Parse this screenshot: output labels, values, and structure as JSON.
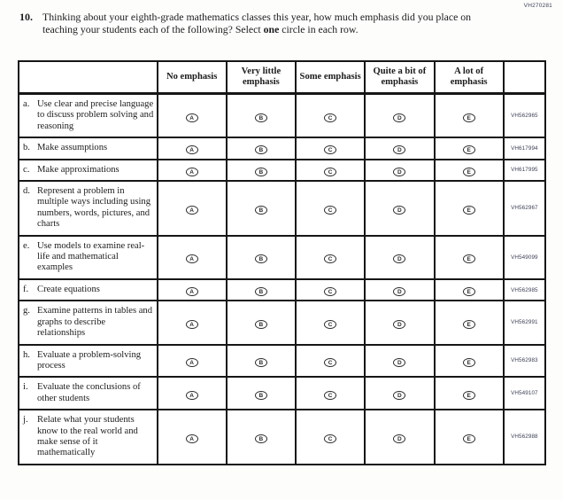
{
  "page_code": "VH270281",
  "question": {
    "number": "10.",
    "text_before_bold": "Thinking about your eighth-grade mathematics classes this year, how much emphasis did you place on teaching your students each of the following? Select ",
    "bold_word": "one",
    "text_after_bold": " circle in each row."
  },
  "table": {
    "columns": [
      "No emphasis",
      "Very little emphasis",
      "Some emphasis",
      "Quite a bit of emphasis",
      "A lot of emphasis"
    ],
    "option_letters": [
      "A",
      "B",
      "C",
      "D",
      "E"
    ],
    "rows": [
      {
        "letter": "a.",
        "text": "Use clear and precise language to discuss problem solving and reasoning",
        "code": "VH562965"
      },
      {
        "letter": "b.",
        "text": "Make assumptions",
        "code": "VH617994"
      },
      {
        "letter": "c.",
        "text": "Make approximations",
        "code": "VH617995"
      },
      {
        "letter": "d.",
        "text": "Represent a problem in multiple ways including using numbers, words, pictures, and charts",
        "code": "VH562967"
      },
      {
        "letter": "e.",
        "text": "Use models to examine real-life and mathematical examples",
        "code": "VH549099"
      },
      {
        "letter": "f.",
        "text": "Create equations",
        "code": "VH562985"
      },
      {
        "letter": "g.",
        "text": "Examine patterns in tables and graphs to describe relationships",
        "code": "VH562991"
      },
      {
        "letter": "h.",
        "text": "Evaluate a problem-solving process",
        "code": "VH562983"
      },
      {
        "letter": "i.",
        "text": "Evaluate the conclusions of other students",
        "code": "VH549107"
      },
      {
        "letter": "j.",
        "text": "Relate what your students know to the real world and make sense of it mathematically",
        "code": "VH562988"
      }
    ]
  },
  "colors": {
    "border": "#161616",
    "text": "#1c1c1c",
    "code_text": "#3d4156",
    "page_background": "#fdfdfc"
  }
}
